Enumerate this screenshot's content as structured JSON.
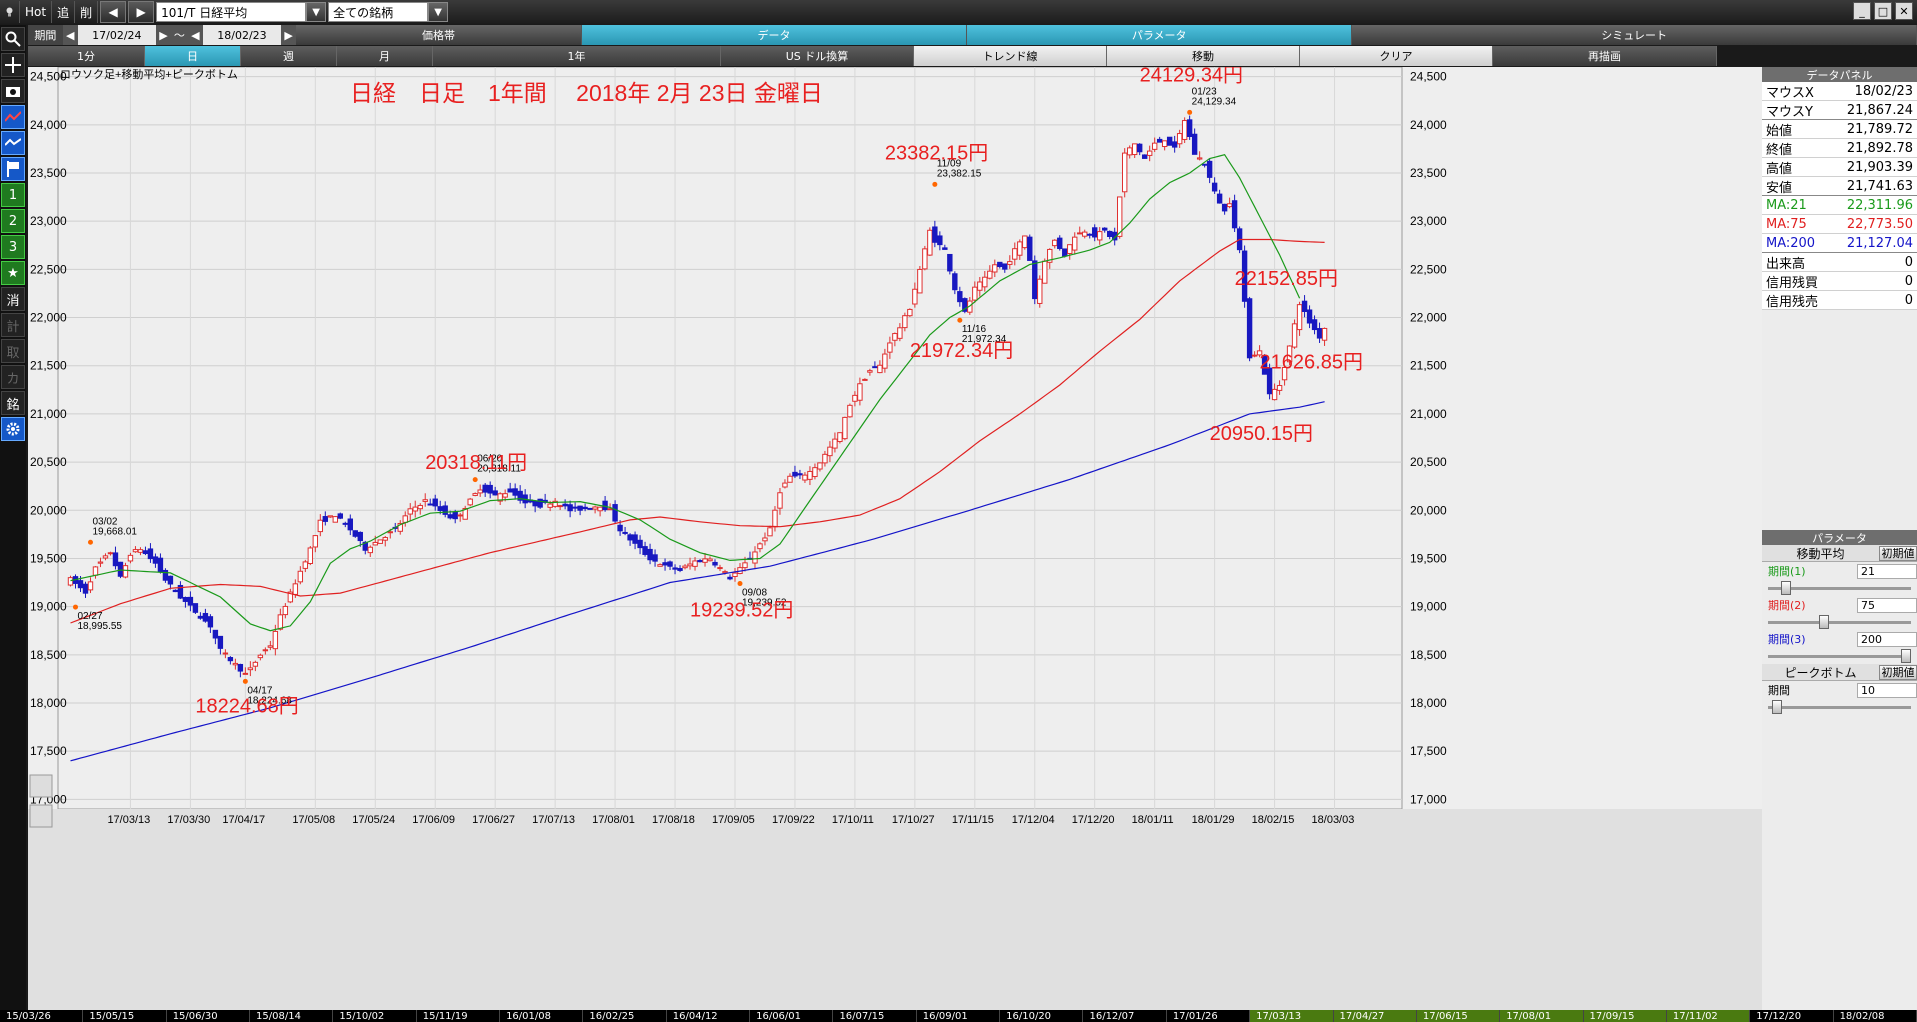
{
  "titlebar": {
    "hot": "Hot",
    "tsui": "追",
    "saku": "削",
    "symbol": "101/T 日経平均",
    "universe": "全ての銘柄"
  },
  "period_row": {
    "label": "期間",
    "from": "17/02/24",
    "tilde": "～",
    "to": "18/02/23",
    "tabs": [
      "価格帯",
      "データ",
      "パラメータ",
      "シミュレート"
    ]
  },
  "interval_row": {
    "items": [
      "1分",
      "日",
      "週",
      "月",
      "1年",
      "US ドル換算",
      "トレンド線",
      "移動",
      "クリア",
      "再描画"
    ]
  },
  "toolbar": {
    "buttons": [
      "1",
      "2",
      "3",
      "★",
      "消",
      "計",
      "取",
      "カ",
      "銘"
    ]
  },
  "chart_data": {
    "type": "candlestick",
    "subtitle": "ロウソク足+移動平均+ピークボトム",
    "title": "日経　日足　1年間　 2018年 2月 23日 金曜日",
    "ylim": [
      16900,
      24600
    ],
    "yticks": [
      17000,
      17500,
      18000,
      18500,
      19000,
      19500,
      20000,
      20500,
      21000,
      21500,
      22000,
      22500,
      23000,
      23500,
      24000,
      24500
    ],
    "ytick_labels": [
      "17,000",
      "17,500",
      "18,000",
      "18,500",
      "19,000",
      "19,500",
      "20,000",
      "20,500",
      "21,000",
      "21,500",
      "22,000",
      "22,500",
      "23,000",
      "23,500",
      "24,000",
      "24,500"
    ],
    "x_ticks": [
      {
        "i": 12,
        "label": "17/03/13"
      },
      {
        "i": 24,
        "label": "17/03/30"
      },
      {
        "i": 35,
        "label": "17/04/17"
      },
      {
        "i": 49,
        "label": "17/05/08"
      },
      {
        "i": 61,
        "label": "17/05/24"
      },
      {
        "i": 73,
        "label": "17/06/09"
      },
      {
        "i": 85,
        "label": "17/06/27"
      },
      {
        "i": 97,
        "label": "17/07/13"
      },
      {
        "i": 109,
        "label": "17/08/01"
      },
      {
        "i": 121,
        "label": "17/08/18"
      },
      {
        "i": 133,
        "label": "17/09/05"
      },
      {
        "i": 145,
        "label": "17/09/22"
      },
      {
        "i": 157,
        "label": "17/10/11"
      },
      {
        "i": 169,
        "label": "17/10/27"
      },
      {
        "i": 181,
        "label": "17/11/15"
      },
      {
        "i": 193,
        "label": "17/12/04"
      },
      {
        "i": 205,
        "label": "17/12/20"
      },
      {
        "i": 217,
        "label": "18/01/11"
      },
      {
        "i": 229,
        "label": "18/01/29"
      },
      {
        "i": 241,
        "label": "18/02/15"
      },
      {
        "i": 253,
        "label": "18/03/03"
      }
    ],
    "n_slots": 265,
    "closes_anchor": [
      [
        0,
        19284
      ],
      [
        3,
        19150
      ],
      [
        5,
        19400
      ],
      [
        8,
        19566
      ],
      [
        10,
        19300
      ],
      [
        12,
        19550
      ],
      [
        14,
        19600
      ],
      [
        17,
        19450
      ],
      [
        19,
        19280
      ],
      [
        22,
        19100
      ],
      [
        25,
        18950
      ],
      [
        28,
        18800
      ],
      [
        30,
        18550
      ],
      [
        33,
        18400
      ],
      [
        35,
        18300
      ],
      [
        36,
        18350
      ],
      [
        38,
        18500
      ],
      [
        40,
        18600
      ],
      [
        42,
        18900
      ],
      [
        45,
        19250
      ],
      [
        48,
        19600
      ],
      [
        50,
        19880
      ],
      [
        53,
        19950
      ],
      [
        56,
        19800
      ],
      [
        59,
        19600
      ],
      [
        62,
        19700
      ],
      [
        65,
        19800
      ],
      [
        68,
        20000
      ],
      [
        71,
        20100
      ],
      [
        74,
        20000
      ],
      [
        77,
        19900
      ],
      [
        80,
        20100
      ],
      [
        82,
        20230
      ],
      [
        85,
        20150
      ],
      [
        88,
        20200
      ],
      [
        91,
        20080
      ],
      [
        94,
        20050
      ],
      [
        97,
        20100
      ],
      [
        100,
        20000
      ],
      [
        103,
        20020
      ],
      [
        106,
        20050
      ],
      [
        108,
        20000
      ],
      [
        110,
        19800
      ],
      [
        113,
        19650
      ],
      [
        116,
        19500
      ],
      [
        119,
        19420
      ],
      [
        122,
        19380
      ],
      [
        125,
        19470
      ],
      [
        128,
        19500
      ],
      [
        130,
        19400
      ],
      [
        132,
        19300
      ],
      [
        134,
        19390
      ],
      [
        136,
        19500
      ],
      [
        138,
        19650
      ],
      [
        140,
        19800
      ],
      [
        142,
        20200
      ],
      [
        144,
        20350
      ],
      [
        146,
        20350
      ],
      [
        148,
        20400
      ],
      [
        150,
        20500
      ],
      [
        152,
        20650
      ],
      [
        154,
        20800
      ],
      [
        156,
        21100
      ],
      [
        158,
        21300
      ],
      [
        160,
        21450
      ],
      [
        162,
        21500
      ],
      [
        164,
        21750
      ],
      [
        166,
        21900
      ],
      [
        168,
        22100
      ],
      [
        170,
        22500
      ],
      [
        172,
        22900
      ],
      [
        173,
        22800
      ],
      [
        175,
        22700
      ],
      [
        177,
        22300
      ],
      [
        179,
        22050
      ],
      [
        181,
        22300
      ],
      [
        183,
        22400
      ],
      [
        185,
        22550
      ],
      [
        187,
        22500
      ],
      [
        189,
        22700
      ],
      [
        191,
        22850
      ],
      [
        192,
        22600
      ],
      [
        193,
        22200
      ],
      [
        195,
        22600
      ],
      [
        197,
        22800
      ],
      [
        199,
        22650
      ],
      [
        201,
        22850
      ],
      [
        203,
        22900
      ],
      [
        205,
        22850
      ],
      [
        207,
        22900
      ],
      [
        209,
        22800
      ],
      [
        211,
        23700
      ],
      [
        213,
        23800
      ],
      [
        215,
        23650
      ],
      [
        217,
        23800
      ],
      [
        219,
        23850
      ],
      [
        221,
        23750
      ],
      [
        223,
        24050
      ],
      [
        225,
        23700
      ],
      [
        227,
        23600
      ],
      [
        229,
        23300
      ],
      [
        231,
        23100
      ],
      [
        232,
        23200
      ],
      [
        234,
        22700
      ],
      [
        236,
        21600
      ],
      [
        238,
        21650
      ],
      [
        240,
        21200
      ],
      [
        242,
        21300
      ],
      [
        244,
        21700
      ],
      [
        246,
        22150
      ],
      [
        248,
        21950
      ],
      [
        250,
        21800
      ],
      [
        251,
        21892
      ]
    ],
    "ma21_anchor": [
      [
        0,
        19270
      ],
      [
        10,
        19380
      ],
      [
        20,
        19350
      ],
      [
        30,
        19100
      ],
      [
        36,
        18820
      ],
      [
        40,
        18750
      ],
      [
        44,
        18800
      ],
      [
        48,
        19050
      ],
      [
        52,
        19450
      ],
      [
        56,
        19600
      ],
      [
        60,
        19680
      ],
      [
        66,
        19850
      ],
      [
        72,
        19970
      ],
      [
        78,
        19990
      ],
      [
        84,
        20100
      ],
      [
        90,
        20120
      ],
      [
        96,
        20080
      ],
      [
        102,
        20090
      ],
      [
        108,
        20030
      ],
      [
        114,
        19900
      ],
      [
        120,
        19700
      ],
      [
        126,
        19560
      ],
      [
        132,
        19480
      ],
      [
        138,
        19500
      ],
      [
        142,
        19650
      ],
      [
        146,
        19950
      ],
      [
        150,
        20250
      ],
      [
        156,
        20700
      ],
      [
        162,
        21150
      ],
      [
        168,
        21550
      ],
      [
        172,
        21820
      ],
      [
        176,
        22000
      ],
      [
        180,
        22120
      ],
      [
        186,
        22380
      ],
      [
        192,
        22550
      ],
      [
        198,
        22620
      ],
      [
        204,
        22700
      ],
      [
        208,
        22780
      ],
      [
        212,
        22980
      ],
      [
        216,
        23230
      ],
      [
        220,
        23400
      ],
      [
        224,
        23500
      ],
      [
        228,
        23650
      ],
      [
        231,
        23690
      ],
      [
        234,
        23450
      ],
      [
        238,
        23050
      ],
      [
        242,
        22650
      ],
      [
        246,
        22200
      ]
    ],
    "ma75_anchor": [
      [
        0,
        18830
      ],
      [
        10,
        19030
      ],
      [
        20,
        19190
      ],
      [
        30,
        19230
      ],
      [
        38,
        19210
      ],
      [
        46,
        19110
      ],
      [
        54,
        19140
      ],
      [
        64,
        19280
      ],
      [
        74,
        19420
      ],
      [
        84,
        19560
      ],
      [
        94,
        19680
      ],
      [
        104,
        19800
      ],
      [
        112,
        19900
      ],
      [
        118,
        19930
      ],
      [
        126,
        19880
      ],
      [
        134,
        19840
      ],
      [
        142,
        19830
      ],
      [
        150,
        19880
      ],
      [
        158,
        19950
      ],
      [
        166,
        20120
      ],
      [
        174,
        20400
      ],
      [
        182,
        20720
      ],
      [
        190,
        21000
      ],
      [
        198,
        21300
      ],
      [
        206,
        21650
      ],
      [
        214,
        21980
      ],
      [
        222,
        22380
      ],
      [
        230,
        22690
      ],
      [
        234,
        22810
      ],
      [
        240,
        22810
      ],
      [
        246,
        22790
      ],
      [
        251,
        22780
      ]
    ],
    "ma200_anchor": [
      [
        0,
        17400
      ],
      [
        20,
        17680
      ],
      [
        40,
        17950
      ],
      [
        60,
        18260
      ],
      [
        80,
        18580
      ],
      [
        100,
        18920
      ],
      [
        120,
        19250
      ],
      [
        140,
        19420
      ],
      [
        160,
        19690
      ],
      [
        180,
        20000
      ],
      [
        200,
        20320
      ],
      [
        220,
        20680
      ],
      [
        236,
        21000
      ],
      [
        246,
        21070
      ],
      [
        251,
        21127
      ]
    ],
    "peaks": [
      {
        "i": 4,
        "value": 19668.01,
        "date": "03/02",
        "value_label": "19,668.01"
      },
      {
        "i": 1,
        "value": 18995.55,
        "date": "02/27",
        "value_label": "18,995.55"
      },
      {
        "i": 35,
        "value": 18224.68,
        "date": "04/17",
        "value_label": "18,224.68"
      },
      {
        "i": 81,
        "value": 20318.11,
        "date": "06/20",
        "value_label": "20,318.11"
      },
      {
        "i": 134,
        "value": 19239.52,
        "date": "09/08",
        "value_label": "19,239.52"
      },
      {
        "i": 173,
        "value": 23382.15,
        "date": "11/09",
        "value_label": "23,382.15"
      },
      {
        "i": 178,
        "value": 21972.34,
        "date": "11/16",
        "value_label": "21,972.34"
      },
      {
        "i": 224,
        "value": 24129.34,
        "date": "01/23",
        "value_label": "24,129.34"
      }
    ],
    "red_labels": [
      "18224.68円",
      "20318.11円",
      "19239.52円",
      "23382.15円",
      "21972.34円",
      "24129.34円",
      "22152.85円",
      "21626.85円",
      "20950.15円"
    ],
    "series_colors": {
      "ma21": "#1a9a1a",
      "ma75": "#e02020",
      "ma200": "#1414c8",
      "up": "#e03030",
      "down": "#1818c0"
    }
  },
  "panel": {
    "data_header": "データパネル",
    "rows": [
      {
        "k": "マウスX",
        "v": "18/02/23"
      },
      {
        "k": "マウスY",
        "v": "21,867.24"
      },
      {
        "k": "始値",
        "v": "21,789.72"
      },
      {
        "k": "終値",
        "v": "21,892.78"
      },
      {
        "k": "高値",
        "v": "21,903.39"
      },
      {
        "k": "安値",
        "v": "21,741.63"
      }
    ],
    "ma_rows": [
      {
        "k": "MA:21",
        "v": "22,311.96",
        "color": "#1a9a1a"
      },
      {
        "k": "MA:75",
        "v": "22,773.50",
        "color": "#e02020"
      },
      {
        "k": "MA:200",
        "v": "21,127.04",
        "color": "#1414c8"
      }
    ],
    "vol_rows": [
      {
        "k": "出来高",
        "v": "0"
      },
      {
        "k": "信用残買",
        "v": "0"
      },
      {
        "k": "信用残売",
        "v": "0"
      }
    ],
    "param_header": "パラメータ",
    "ma_section": "移動平均",
    "init_label": "初期値",
    "ma_params": [
      {
        "k": "期間(1)",
        "v": "21",
        "color": "#1a9a1a"
      },
      {
        "k": "期間(2)",
        "v": "75",
        "color": "#e02020"
      },
      {
        "k": "期間(3)",
        "v": "200",
        "color": "#1414c8"
      }
    ],
    "slider_levels": {
      "ma1": 0.1,
      "ma2": 0.38,
      "ma3": 1.0,
      "pb": 0.03
    },
    "pb_section": "ピークボトム",
    "pb_params": [
      {
        "k": "期間",
        "v": "10"
      }
    ]
  },
  "bottom_dates": [
    "15/03/26",
    "15/05/15",
    "15/06/30",
    "15/08/14",
    "15/10/02",
    "15/11/19",
    "16/01/08",
    "16/02/25",
    "16/04/12",
    "16/06/01",
    "16/07/15",
    "16/09/01",
    "16/10/20",
    "16/12/07",
    "17/01/26",
    "17/03/13",
    "17/04/27",
    "17/06/15",
    "17/08/01",
    "17/09/15",
    "17/11/02",
    "17/12/20",
    "18/02/08"
  ]
}
